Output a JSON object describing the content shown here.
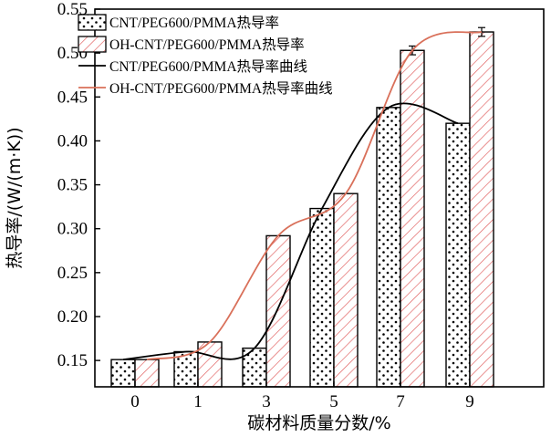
{
  "chart_data": {
    "type": "bar",
    "categories": [
      "0",
      "1",
      "3",
      "5",
      "7",
      "9"
    ],
    "xlabel": "碳材料质量分数/%",
    "ylabel": "热导率/(W/(m·K))",
    "ylim": [
      0.12,
      0.55
    ],
    "yticks": [
      0.15,
      0.2,
      0.25,
      0.3,
      0.35,
      0.4,
      0.45,
      0.5,
      0.55
    ],
    "ytick_labels": [
      "0.15",
      "0.20",
      "0.25",
      "0.30",
      "0.35",
      "0.40",
      "0.45",
      "0.50",
      "0.55"
    ],
    "legend_position": "top-left",
    "grid": false,
    "series": [
      {
        "name": "CNT/PEG600/PMMA热导率",
        "kind": "bar",
        "pattern": "dots",
        "values": [
          0.151,
          0.16,
          0.164,
          0.323,
          0.438,
          0.42
        ]
      },
      {
        "name": "OH-CNT/PEG600/PMMA热导率",
        "kind": "bar",
        "pattern": "hatch",
        "color": "#e05a5a",
        "values": [
          0.151,
          0.171,
          0.292,
          0.34,
          0.503,
          0.524
        ],
        "errors": [
          0,
          0,
          0,
          0,
          0.005,
          0.005
        ]
      },
      {
        "name": "CNT/PEG600/PMMA热导率曲线",
        "kind": "line",
        "color": "#000000",
        "values": [
          0.151,
          0.16,
          0.164,
          0.323,
          0.438,
          0.42
        ]
      },
      {
        "name": "OH-CNT/PEG600/PMMA热导率曲线",
        "kind": "line",
        "color": "#d9705a",
        "values": [
          0.151,
          0.171,
          0.292,
          0.34,
          0.503,
          0.524
        ]
      }
    ]
  }
}
